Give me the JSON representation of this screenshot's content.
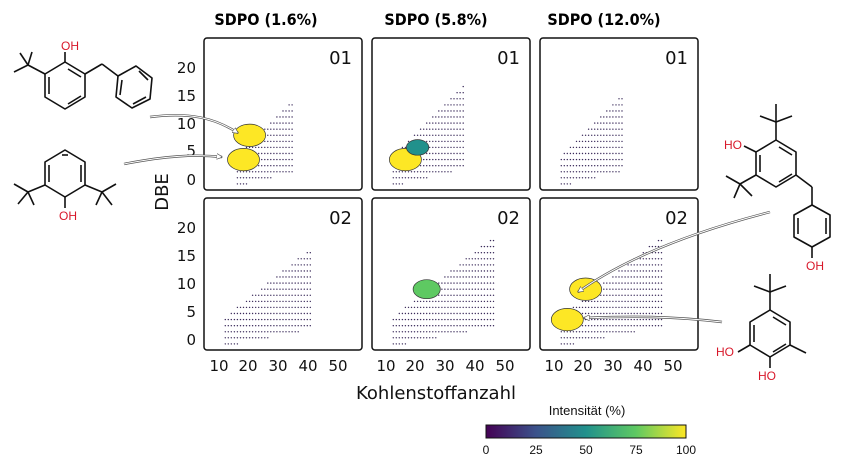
{
  "panel_titles": [
    "SDPO (1.6%)",
    "SDPO (5.8%)",
    "SDPO (12.0%)"
  ],
  "panel_labels": [
    "01",
    "02"
  ],
  "xlabel": "Kohlenstoffanzahl",
  "ylabel": "DBE",
  "x_ticks": [
    "10",
    "20",
    "30",
    "40",
    "50"
  ],
  "y_ticks": [
    "0",
    "5",
    "10",
    "15",
    "20"
  ],
  "colorbar": {
    "title": "Intensität (%)",
    "ticks": [
      "0",
      "25",
      "50",
      "75",
      "100"
    ],
    "colors": [
      "#440154",
      "#3b528b",
      "#21918c",
      "#5ec962",
      "#fde725"
    ]
  },
  "molecule_labels": {
    "oh": "OH",
    "ho": "HO"
  },
  "chart_data": {
    "type": "scatter",
    "description_axes": {
      "x": "Kohlenstoffanzahl",
      "y": "DBE"
    },
    "xlim": [
      5,
      57
    ],
    "ylim": [
      -1,
      24
    ],
    "grid": false,
    "panels": [
      {
        "title": "SDPO (1.6%)",
        "label": "01",
        "x_range": [
          16,
          34
        ],
        "slope": 0.52,
        "max_dbe": 20,
        "hotspots": [
          {
            "x": 20,
            "y": 8,
            "intensity": 100
          },
          {
            "x": 18,
            "y": 4,
            "intensity": 100
          }
        ]
      },
      {
        "title": "SDPO (5.8%)",
        "label": "01",
        "x_range": [
          12,
          35
        ],
        "slope": 0.52,
        "max_dbe": 20,
        "hotspots": [
          {
            "x": 16,
            "y": 4,
            "intensity": 100
          },
          {
            "x": 20,
            "y": 6,
            "intensity": 60
          }
        ]
      },
      {
        "title": "SDPO (12.0%)",
        "label": "01",
        "x_range": [
          12,
          32
        ],
        "slope": 0.5,
        "max_dbe": 20,
        "hotspots": []
      },
      {
        "title": "SDPO (1.6%)",
        "label": "02",
        "x_range": [
          12,
          40
        ],
        "slope": 0.4,
        "max_dbe": 19,
        "hotspots": []
      },
      {
        "title": "SDPO (5.8%)",
        "label": "02",
        "x_range": [
          12,
          45
        ],
        "slope": 0.4,
        "max_dbe": 19,
        "hotspots": [
          {
            "x": 23,
            "y": 9,
            "intensity": 80
          }
        ]
      },
      {
        "title": "SDPO (12.0%)",
        "label": "02",
        "x_range": [
          12,
          45
        ],
        "slope": 0.4,
        "max_dbe": 19,
        "hotspots": [
          {
            "x": 20,
            "y": 9,
            "intensity": 100
          },
          {
            "x": 14,
            "y": 4,
            "intensity": 100
          }
        ]
      }
    ]
  }
}
